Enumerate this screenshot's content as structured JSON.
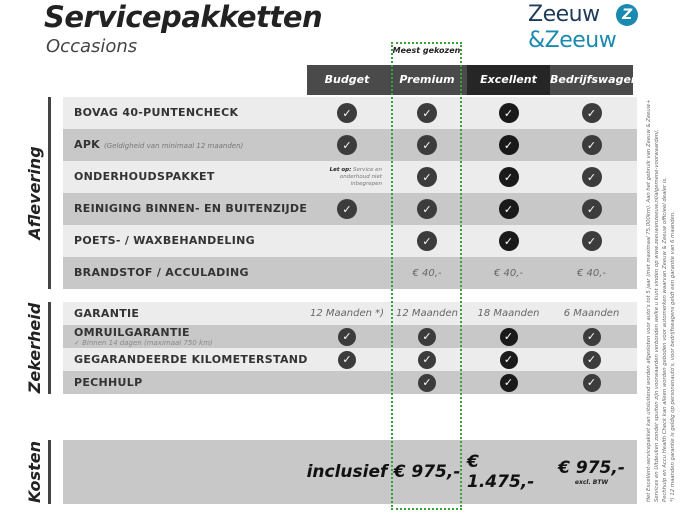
{
  "header": {
    "title": "Servicepakketten",
    "subtitle": "Occasions",
    "logo_line1": "Zeeuw",
    "logo_line2": "&Zeeuw",
    "badge": "Meest gekozen"
  },
  "columns": [
    "Budget",
    "Premium",
    "Excellent",
    "Bedrijfswagens"
  ],
  "colors": {
    "header": "#4a4a4a",
    "header_excellent": "#262626",
    "row_light": "#ececec",
    "row_dark": "#c8c8c8",
    "highlight": "#3aa03a",
    "logo": "#1f3b5a",
    "logo_accent": "#1a8ab0"
  },
  "sections": [
    {
      "label": "Aflevering",
      "rows": [
        {
          "label": "BOVAG 40-PUNTENCHECK",
          "cells": [
            "check",
            "check",
            "check",
            "check"
          ]
        },
        {
          "label": "APK",
          "note": "(Geldigheid van minimaal 12 maanden)",
          "cells": [
            "check",
            "check",
            "check",
            "check"
          ]
        },
        {
          "label": "ONDERHOUDSPAKKET",
          "warning": {
            "bold": "Let op:",
            "text": "Service en onderhoud niet inbegrepen"
          },
          "cells": [
            "",
            "check",
            "check",
            "check"
          ]
        },
        {
          "label": "REINIGING BINNEN- EN BUITENZIJDE",
          "cells": [
            "check",
            "check",
            "check",
            "check"
          ]
        },
        {
          "label": "POETS- / WAXBEHANDELING",
          "cells": [
            "",
            "check",
            "check",
            "check"
          ]
        },
        {
          "label": "BRANDSTOF / ACCULADING",
          "cells": [
            "",
            "€ 40,-",
            "€ 40,-",
            "€ 40,-"
          ]
        }
      ]
    },
    {
      "label": "Zekerheid",
      "rows": [
        {
          "label": "GARANTIE",
          "cells": [
            "12 Maanden *)",
            "12 Maanden",
            "18 Maanden",
            "6 Maanden"
          ]
        },
        {
          "label": "OMRUILGARANTIE",
          "sub": "✓   Binnen 14 dagen (maximaal 750 km)",
          "cells": [
            "check",
            "check",
            "check",
            "check"
          ]
        },
        {
          "label": "GEGARANDEERDE KILOMETERSTAND",
          "cells": [
            "check",
            "check",
            "check",
            "check"
          ]
        },
        {
          "label": "PECHHULP",
          "cells": [
            "",
            "check",
            "check",
            "check"
          ]
        }
      ]
    },
    {
      "label": "Kosten",
      "prices": [
        "inclusief",
        "€ 975,-",
        "€ 1.475,-",
        "€ 975,-"
      ],
      "price_note": "excl. BTW"
    }
  ],
  "footnote": [
    "Het Excellent-servicepakket kan uitsluitend worden afgesloten voor auto's tot 5 jaar (met maximaal 75.000km). Aan het gebruik van Zeeuw & Zeeuw+",
    "Services en Uitdeuken zonder spuiten zijn voorwaarden verbonden welke u kunt vinden op www.zeeuwenzeeuw.nl/algemene-voorwaarden/.",
    "Pechhulp en Accu Health Check kan alleen worden geboden voor automerken waarvan Zeeuw & Zeeuw officieel dealer is.",
    "*) 12 maanden garantie is geldig op personenauto's, voor bedrijfswagens geldt een garantie van 6 maanden."
  ]
}
